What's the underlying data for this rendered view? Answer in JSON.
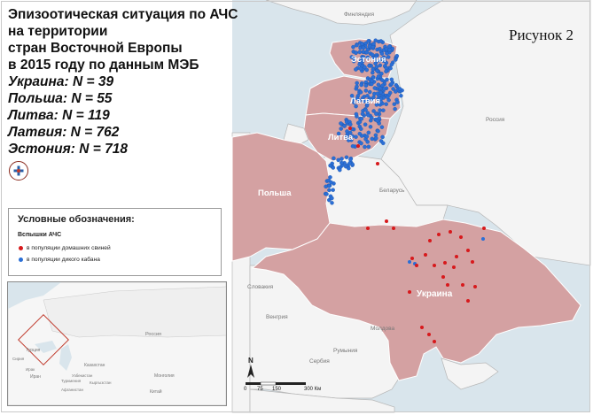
{
  "title": {
    "lines": [
      "Эпизоотическая ситуация по АЧС",
      "на территории",
      "стран Восточной Европы",
      "в 2015 году по данным МЭБ"
    ],
    "stats": [
      "Украина: N = 39",
      "Польша: N = 55",
      "Литва: N = 119",
      "Латвия: N = 762",
      "Эстония: N = 718"
    ]
  },
  "figure_label": "Рисунок 2",
  "legend": {
    "title": "Условные обозначения:",
    "subtitle": "Вспышки АЧС",
    "items": [
      {
        "label": "в популяции домашних свиней",
        "color": "#d7191c"
      },
      {
        "label": "в популяции дикого кабана",
        "color": "#2b6fd6"
      }
    ]
  },
  "map": {
    "highlight_color": "#d4a1a2",
    "water_color": "#d9e5ec",
    "land_color": "#f4f4f4",
    "highlighted_labels": {
      "estonia": "Эстония",
      "latvia": "Латвия",
      "lithuania": "Литва",
      "poland": "Польша",
      "ukraine": "Украина"
    },
    "other_labels": {
      "finland": "Финляндия",
      "russia": "Россия",
      "belarus": "Беларусь",
      "slovakia": "Словакия",
      "hungary": "Венгрия",
      "moldova": "Молдова",
      "romania": "Румыния",
      "serbia": "Сербия"
    },
    "north_label": "N",
    "scale": {
      "ticks": [
        "0",
        "75",
        "150",
        "300 Км"
      ]
    }
  },
  "inset": {
    "labels": {
      "russia": "Россия",
      "kazakhstan": "Казахстан",
      "mongolia": "Монголия",
      "china": "Китай",
      "turkey": "Турция",
      "iran": "Иран",
      "iraq": "Ирак",
      "syria": "Сирия",
      "afghanistan": "Афганистан",
      "uzbekistan": "Узбекистан",
      "turkmenistan": "Туркмения",
      "kyrgyzstan": "Кыргызстан"
    }
  }
}
